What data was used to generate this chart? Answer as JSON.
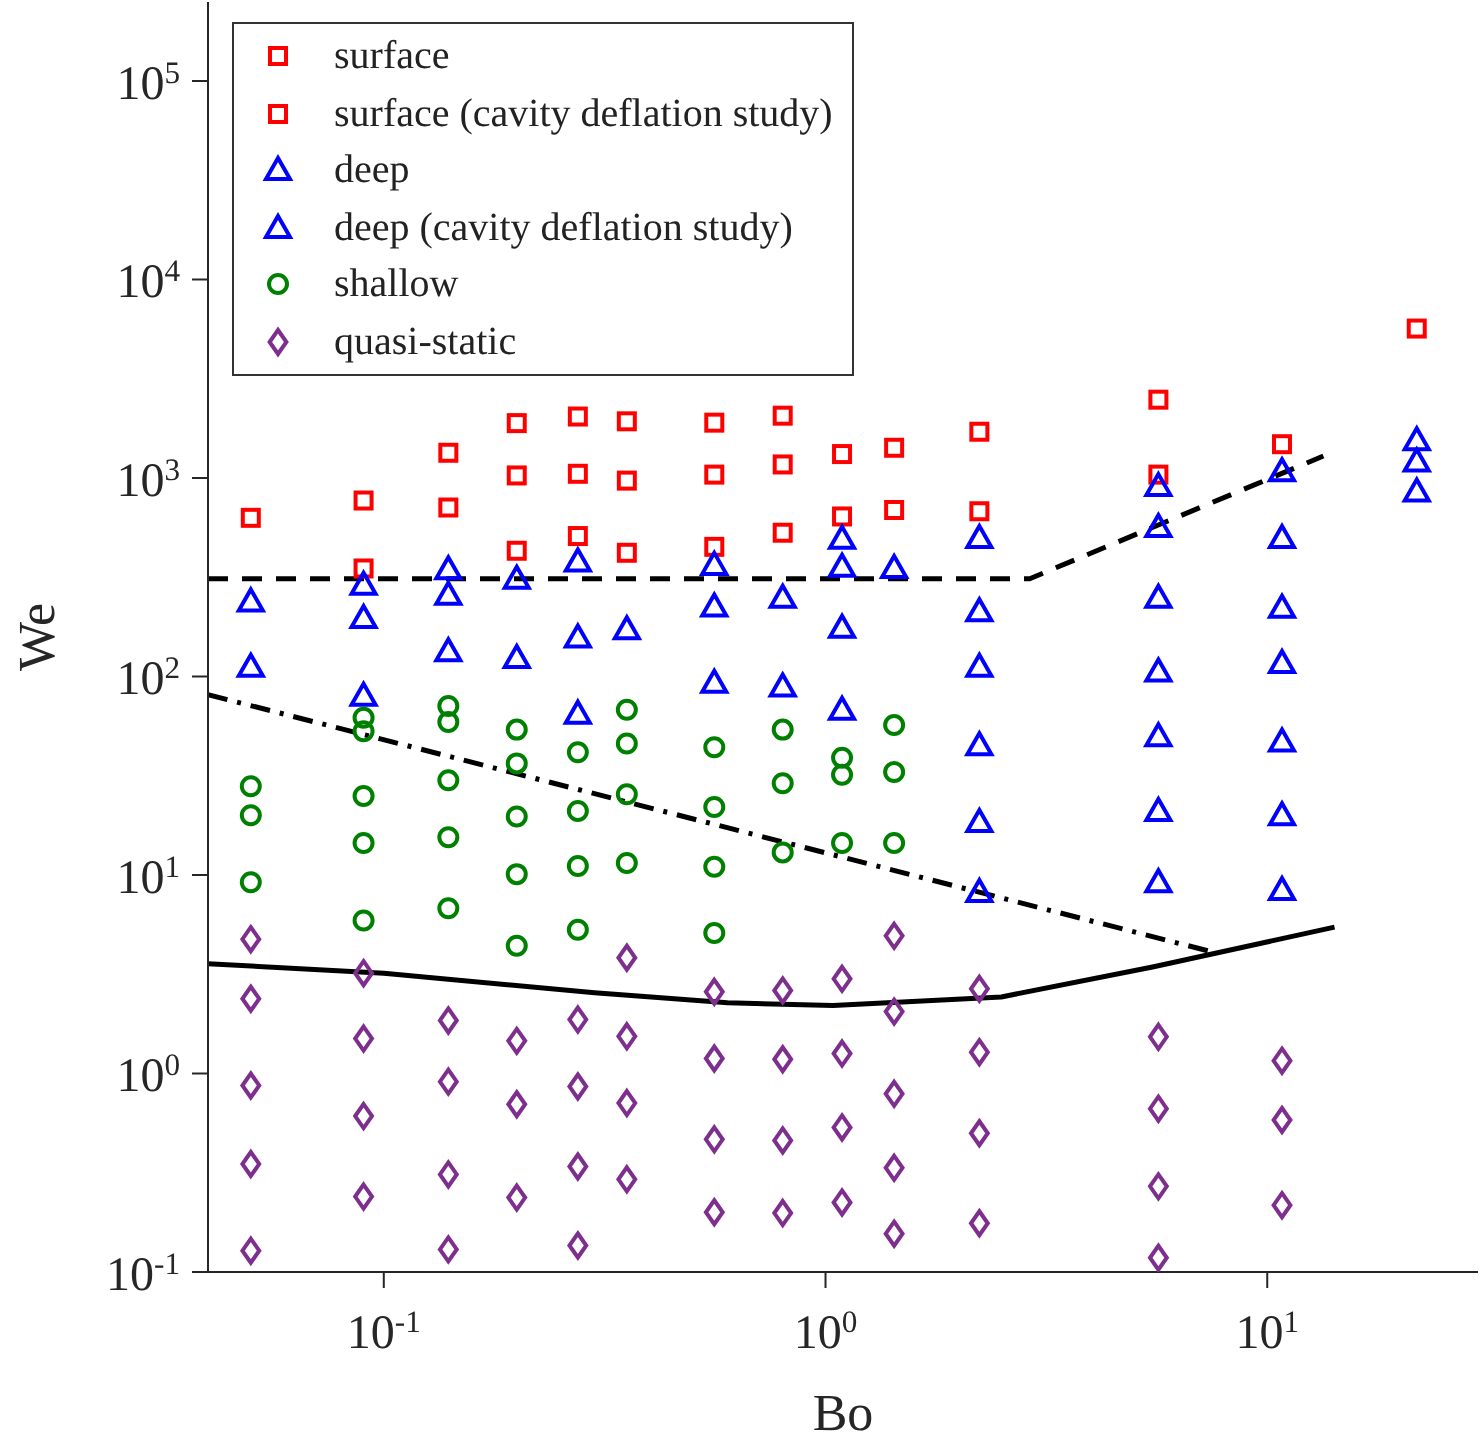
{
  "chart_data": {
    "type": "scatter",
    "xlabel": "Bo",
    "ylabel": "We",
    "log": "xy",
    "xlim": [
      0.04,
      30
    ],
    "ylim": [
      0.1,
      250000
    ],
    "xticks": [
      {
        "value": 0.1,
        "label": "10$^{-1}$"
      },
      {
        "value": 1,
        "label": "10$^{0}$"
      },
      {
        "value": 10,
        "label": "10$^{1}$"
      }
    ],
    "yticks": [
      {
        "value": 0.1,
        "label": "10$^{-1}$"
      },
      {
        "value": 1,
        "label": "10$^{0}$"
      },
      {
        "value": 10,
        "label": "10$^{1}$"
      },
      {
        "value": 100,
        "label": "10$^{2}$"
      },
      {
        "value": 1000,
        "label": "10$^{3}$"
      },
      {
        "value": 10000,
        "label": "10$^{4}$"
      },
      {
        "value": 100000,
        "label": "10$^{5}$"
      }
    ],
    "legend": "top left",
    "grid": false,
    "series": [
      {
        "name": "surface",
        "marker": "square",
        "color": "#ff0000",
        "x": [
          0.05,
          0.09,
          0.09,
          0.14,
          0.14,
          0.2,
          0.2,
          0.2,
          0.275,
          0.275,
          0.275,
          0.355,
          0.355,
          0.355,
          0.56,
          0.56,
          0.56,
          0.8,
          0.8,
          0.8,
          1.09,
          1.09,
          1.43,
          1.43,
          2.23,
          2.23,
          5.67,
          5.67,
          10.8
        ],
        "values": [
          630,
          770,
          350,
          1340,
          710,
          1890,
          1030,
          430,
          2040,
          1050,
          510,
          1930,
          970,
          420,
          1900,
          1040,
          450,
          2060,
          1170,
          530,
          1320,
          640,
          1420,
          690,
          1710,
          680,
          2480,
          1040,
          1480
        ]
      },
      {
        "name": "surface (cavity deflation study)",
        "marker": "square",
        "color": "#ff0000",
        "x": [
          21.8
        ],
        "values": [
          5660
        ]
      },
      {
        "name": "deep",
        "marker": "triangle",
        "color": "#0000ff",
        "x": [
          0.05,
          0.05,
          0.09,
          0.09,
          0.09,
          0.14,
          0.14,
          0.14,
          0.2,
          0.2,
          0.275,
          0.275,
          0.275,
          0.355,
          0.56,
          0.56,
          0.56,
          0.8,
          0.8,
          1.09,
          1.09,
          1.09,
          1.09,
          1.43,
          2.23,
          2.23,
          2.23,
          2.23,
          2.23,
          2.23,
          5.67,
          5.67,
          5.67,
          5.67,
          5.67,
          5.67,
          5.67,
          10.8,
          10.8,
          10.8,
          10.8,
          10.8,
          10.8,
          10.8
        ],
        "values": [
          239,
          112,
          290,
          197,
          80,
          347,
          258,
          134,
          311,
          124,
          380,
          157,
          65,
          173,
          365,
          225,
          93,
          249,
          89,
          494,
          357,
          176,
          68,
          352,
          498,
          213,
          112,
          45,
          18.5,
          8.2,
          910,
          567,
          249,
          106,
          50,
          21,
          9.2,
          1080,
          498,
          222,
          117,
          47,
          20,
          8.4
        ]
      },
      {
        "name": "deep (cavity deflation study)",
        "marker": "triangle",
        "color": "#0000ff",
        "x": [
          21.8,
          21.8,
          21.8
        ],
        "values": [
          1550,
          1210,
          855
        ]
      },
      {
        "name": "shallow",
        "marker": "circle",
        "color": "#008000",
        "x": [
          0.05,
          0.05,
          0.05,
          0.09,
          0.09,
          0.09,
          0.09,
          0.09,
          0.14,
          0.14,
          0.14,
          0.14,
          0.14,
          0.2,
          0.2,
          0.2,
          0.2,
          0.2,
          0.275,
          0.275,
          0.275,
          0.275,
          0.355,
          0.355,
          0.355,
          0.355,
          0.56,
          0.56,
          0.56,
          0.56,
          0.8,
          0.8,
          0.8,
          1.09,
          1.09,
          1.09,
          1.43,
          1.43,
          1.43
        ],
        "values": [
          28,
          20,
          9.2,
          62,
          53,
          25,
          14.5,
          5.9,
          71,
          59,
          30,
          15.5,
          6.8,
          54,
          36.5,
          19.7,
          10.1,
          4.4,
          41.5,
          21,
          11.1,
          5.3,
          68,
          46,
          25.5,
          11.5,
          44,
          22,
          11,
          5.1,
          54,
          29,
          13,
          39,
          32,
          14.5,
          57,
          33,
          14.5
        ]
      },
      {
        "name": "quasi-static",
        "marker": "diamond",
        "color": "#7e2f8e",
        "x": [
          0.05,
          0.05,
          0.05,
          0.05,
          0.05,
          0.09,
          0.09,
          0.09,
          0.09,
          0.14,
          0.14,
          0.14,
          0.14,
          0.2,
          0.2,
          0.2,
          0.275,
          0.275,
          0.275,
          0.275,
          0.355,
          0.355,
          0.355,
          0.355,
          0.56,
          0.56,
          0.56,
          0.56,
          0.8,
          0.8,
          0.8,
          0.8,
          1.09,
          1.09,
          1.09,
          1.09,
          1.43,
          1.43,
          1.43,
          1.43,
          1.43,
          2.23,
          2.23,
          2.23,
          2.23,
          5.67,
          5.67,
          5.67,
          5.67,
          10.8,
          10.8,
          10.8
        ],
        "values": [
          4.75,
          2.38,
          0.87,
          0.35,
          0.128,
          3.2,
          1.5,
          0.61,
          0.24,
          1.85,
          0.91,
          0.31,
          0.13,
          1.46,
          0.7,
          0.237,
          1.87,
          0.86,
          0.34,
          0.136,
          3.83,
          1.54,
          0.71,
          0.293,
          2.58,
          1.19,
          0.466,
          0.2,
          2.62,
          1.18,
          0.46,
          0.198,
          3.0,
          1.26,
          0.535,
          0.224,
          4.94,
          2.05,
          0.79,
          0.335,
          0.156,
          2.67,
          1.28,
          0.5,
          0.176,
          1.53,
          0.665,
          0.27,
          0.118,
          1.16,
          0.583,
          0.217
        ]
      },
      {
        "type": "line",
        "line_style": "dashed",
        "marker": "none",
        "color": "#000000",
        "x": [
          0.04,
          2.9,
          13.4
        ],
        "values": [
          311,
          311,
          1290
        ]
      },
      {
        "type": "line",
        "line_style": "dashdot",
        "marker": "none",
        "color": "#000000",
        "x": [
          0.04,
          7.5
        ],
        "values": [
          81,
          4.1
        ]
      },
      {
        "type": "line",
        "line_style": "solid",
        "marker": "none",
        "color": "#000000",
        "x": [
          0.04,
          0.1,
          0.3,
          0.6,
          1.04,
          2.5,
          5.5,
          14.2
        ],
        "values": [
          3.57,
          3.2,
          2.55,
          2.27,
          2.2,
          2.43,
          3.44,
          5.46
        ]
      }
    ]
  }
}
